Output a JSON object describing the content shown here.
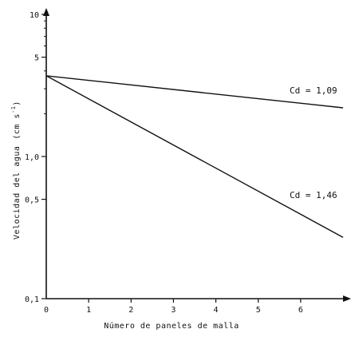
{
  "chart_data": {
    "type": "line",
    "title": "",
    "xlabel": "Número de paneles de malla",
    "ylabel": "Velocidad del agua",
    "ylabel_unit_base": "(cm s",
    "ylabel_unit_exp": "-1",
    "ylabel_unit_close": ")",
    "yscale": "log",
    "xlim": [
      0,
      7
    ],
    "ylim": [
      0.1,
      10
    ],
    "x_ticks": [
      0,
      1,
      2,
      3,
      4,
      5,
      6
    ],
    "x_tick_labels": [
      "0",
      "1",
      "2",
      "3",
      "4",
      "5",
      "6"
    ],
    "y_ticks": [
      0.1,
      0.5,
      1.0,
      5,
      10
    ],
    "y_tick_labels": [
      "0,1",
      "0,5",
      "1,0",
      "5",
      "10"
    ],
    "y_minor_ticks": [
      2,
      3,
      4,
      6,
      7,
      8,
      9
    ],
    "grid": false,
    "series": [
      {
        "name": "Cd = 1,09",
        "x": [
          0,
          7
        ],
        "y": [
          3.7,
          2.2
        ]
      },
      {
        "name": "Cd = 1,46",
        "x": [
          0,
          7
        ],
        "y": [
          3.7,
          0.27
        ]
      }
    ]
  }
}
